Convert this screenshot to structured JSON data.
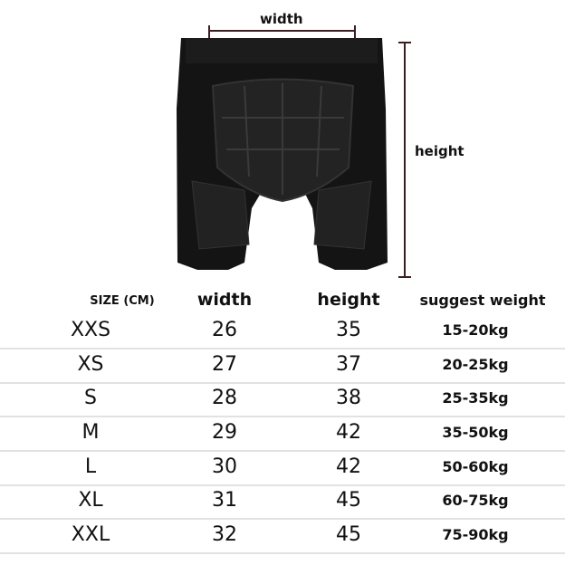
{
  "diagram": {
    "width_label": "width",
    "height_label": "height",
    "line_color": "#3a1e22"
  },
  "table": {
    "headers": [
      "SIZE (CM)",
      "width",
      "height",
      "suggest weight"
    ],
    "rows": [
      [
        "XXS",
        "26",
        "35",
        "15-20kg"
      ],
      [
        "XS",
        "27",
        "37",
        "20-25kg"
      ],
      [
        "S",
        "28",
        "38",
        "25-35kg"
      ],
      [
        "M",
        "29",
        "42",
        "35-50kg"
      ],
      [
        "L",
        "30",
        "42",
        "50-60kg"
      ],
      [
        "XL",
        "31",
        "45",
        "60-75kg"
      ],
      [
        "XXL",
        "32",
        "45",
        "75-90kg"
      ]
    ]
  }
}
